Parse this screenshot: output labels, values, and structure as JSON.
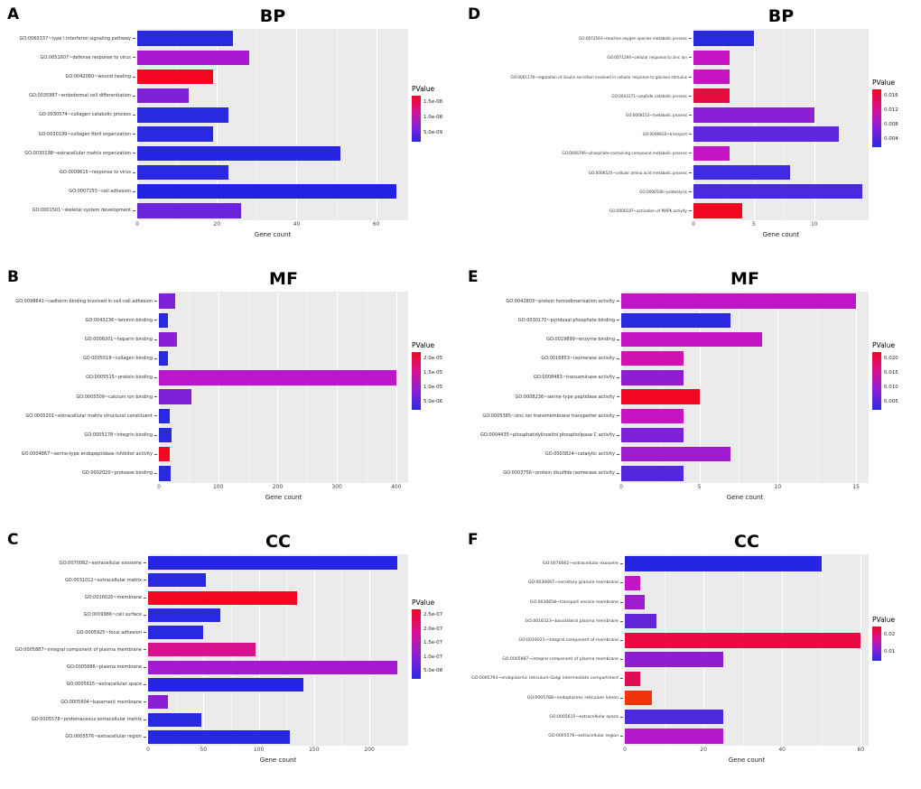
{
  "palette": {
    "plot_background": "#ebebeb",
    "gradient_high_pvalue": "#f20722",
    "gradient_mid_pvalue": "#a619d3",
    "gradient_low_pvalue": "#2929e0"
  },
  "chart_data": [
    {
      "type": "bar",
      "orientation": "horizontal",
      "panel_label": "A",
      "title": "BP",
      "xlabel": "Gene count",
      "legend_title": "PValue",
      "legend_ticks": [
        "1.5e-08",
        "1.0e-08",
        "5.0e-09"
      ],
      "xticks": [
        0,
        20,
        40,
        60
      ],
      "xmax": 68,
      "categories": [
        "GO:0060337~type I interferon signaling pathway",
        "GO:0051607~defense response to virus",
        "GO:0042060~wound healing",
        "GO:0035987~endodermal cell differentiation",
        "GO:0030574~collagen catabolic process",
        "GO:0030199~collagen fibril organization",
        "GO:0030198~extracellular matrix organization",
        "GO:0009615~response to virus",
        "GO:0007155~cell adhesion",
        "GO:0001501~skeletal system development"
      ],
      "values": [
        24,
        28,
        19,
        13,
        23,
        19,
        51,
        23,
        65,
        26
      ],
      "bar_colors": [
        "#2929e0",
        "#aa18d2",
        "#f20722",
        "#7d21d8",
        "#2929e0",
        "#2929e0",
        "#2626e2",
        "#2929e0",
        "#2222e4",
        "#6a25da"
      ]
    },
    {
      "type": "bar",
      "orientation": "horizontal",
      "panel_label": "B",
      "title": "MF",
      "xlabel": "Gene count",
      "legend_title": "PValue",
      "legend_ticks": [
        "2.0e-05",
        "1.5e-05",
        "1.0e-05",
        "5.0e-06"
      ],
      "xticks": [
        0,
        100,
        200,
        300,
        400
      ],
      "xmax": 420,
      "categories": [
        "GO:0098641~cadherin binding involved in cell-cell adhesion",
        "GO:0043236~laminin binding",
        "GO:0008201~heparin binding",
        "GO:0005518~collagen binding",
        "GO:0005515~protein binding",
        "GO:0005509~calcium ion binding",
        "GO:0005201~extracellular matrix structural constituent",
        "GO:0005178~integrin binding",
        "GO:0004867~serine-type endopeptidase inhibitor activity",
        "GO:0002020~protease binding"
      ],
      "values": [
        28,
        15,
        30,
        15,
        400,
        55,
        18,
        22,
        18,
        20
      ],
      "bar_colors": [
        "#7d21d8",
        "#2929e0",
        "#8a1fd5",
        "#2929e0",
        "#bb16c9",
        "#7d21d8",
        "#2929e0",
        "#2929e0",
        "#f20722",
        "#2929e0"
      ]
    },
    {
      "type": "bar",
      "orientation": "horizontal",
      "panel_label": "C",
      "title": "CC",
      "xlabel": "Gene count",
      "legend_title": "PValue",
      "legend_ticks": [
        "2.5e-07",
        "2.0e-07",
        "1.5e-07",
        "1.0e-07",
        "5.0e-08"
      ],
      "xticks": [
        0,
        50,
        100,
        150,
        200
      ],
      "xmax": 235,
      "categories": [
        "GO:0070062~extracellular exosome",
        "GO:0031012~extracellular matrix",
        "GO:0016020~membrane",
        "GO:0009986~cell surface",
        "GO:0005925~focal adhesion",
        "GO:0005887~integral component of plasma membrane",
        "GO:0005886~plasma membrane",
        "GO:0005615~extracellular space",
        "GO:0005604~basement membrane",
        "GO:0005578~proteinaceous extracellular matrix",
        "GO:0005576~extracellular region"
      ],
      "values": [
        225,
        52,
        135,
        65,
        50,
        97,
        225,
        140,
        18,
        48,
        128
      ],
      "bar_colors": [
        "#2525e3",
        "#2929e0",
        "#f20722",
        "#2929e0",
        "#2929e0",
        "#d8118c",
        "#a619d3",
        "#2626e2",
        "#8a1fd5",
        "#2929e0",
        "#2727e1"
      ]
    },
    {
      "type": "bar",
      "orientation": "horizontal",
      "panel_label": "D",
      "title": "BP",
      "xlabel": "Gene count",
      "legend_title": "PValue",
      "legend_ticks": [
        "0.016",
        "0.012",
        "0.008",
        "0.004"
      ],
      "xticks": [
        0,
        5,
        10
      ],
      "xmax": 14.5,
      "categories": [
        "GO:0072593~reactive oxygen species metabolic process",
        "GO:0071294~cellular response to zinc ion",
        "GO:0061178~regulation of insulin secretion involved in cellular response to glucose stimulus",
        "GO:0043171~peptide catabolic process",
        "GO:0008152~metabolic process",
        "GO:0006810~transport",
        "GO:0006796~phosphate-containing compound metabolic process",
        "GO:0006520~cellular amino acid metabolic process",
        "GO:0006508~proteolysis",
        "GO:0000187~activation of MAPK activity"
      ],
      "values": [
        5,
        3,
        3,
        3,
        10,
        12,
        3,
        8,
        14,
        4
      ],
      "bar_colors": [
        "#2929e0",
        "#c514c4",
        "#c514c4",
        "#e80c3e",
        "#8a1fd5",
        "#5e27db",
        "#c514c4",
        "#3f2be1",
        "#4b29de",
        "#f20722"
      ]
    },
    {
      "type": "bar",
      "orientation": "horizontal",
      "panel_label": "E",
      "title": "MF",
      "xlabel": "Gene count",
      "legend_title": "PValue",
      "legend_ticks": [
        "0.020",
        "0.015",
        "0.010",
        "0.005"
      ],
      "xticks": [
        0,
        5,
        10,
        15
      ],
      "xmax": 15.8,
      "categories": [
        "GO:0042803~protein homodimerization activity",
        "GO:0030170~pyridoxal phosphate binding",
        "GO:0019899~enzyme binding",
        "GO:0016853~isomerase activity",
        "GO:0008483~transaminase activity",
        "GO:0008236~serine-type peptidase activity",
        "GO:0005385~zinc ion transmembrane transporter activity",
        "GO:0004435~phosphatidylinositol phospholipase C activity",
        "GO:0003824~catalytic activity",
        "GO:0003756~protein disulfide isomerase activity"
      ],
      "values": [
        15,
        7,
        9,
        4,
        4,
        5,
        4,
        4,
        7,
        4
      ],
      "bar_colors": [
        "#bf15c7",
        "#2929e0",
        "#c514c4",
        "#cf12b2",
        "#8d1ed4",
        "#f20722",
        "#c514c4",
        "#7d21d8",
        "#9d1bd0",
        "#5328dd"
      ]
    },
    {
      "type": "bar",
      "orientation": "horizontal",
      "panel_label": "F",
      "title": "CC",
      "xlabel": "Gene count",
      "legend_title": "PValue",
      "legend_ticks": [
        "0.02",
        "0.01"
      ],
      "xticks": [
        0,
        20,
        40,
        60
      ],
      "xmax": 62,
      "categories": [
        "GO:0070062~extracellular exosome",
        "GO:0030667~secretory granule membrane",
        "GO:0030658~transport vesicle membrane",
        "GO:0016323~basolateral plasma membrane",
        "GO:0016021~integral component of membrane",
        "GO:0005887~integral component of plasma membrane",
        "GO:0005793~endoplasmic reticulum-Golgi intermediate compartment",
        "GO:0005788~endoplasmic reticulum lumen",
        "GO:0005615~extracellular space",
        "GO:0005576~extracellular region"
      ],
      "values": [
        50,
        4,
        5,
        8,
        60,
        25,
        4,
        7,
        25,
        25
      ],
      "bar_colors": [
        "#2626e2",
        "#c514c4",
        "#9d1bd0",
        "#6325da",
        "#e90b42",
        "#8d1ed4",
        "#e00d56",
        "#ef350b",
        "#4b29de",
        "#b317cb"
      ]
    }
  ]
}
